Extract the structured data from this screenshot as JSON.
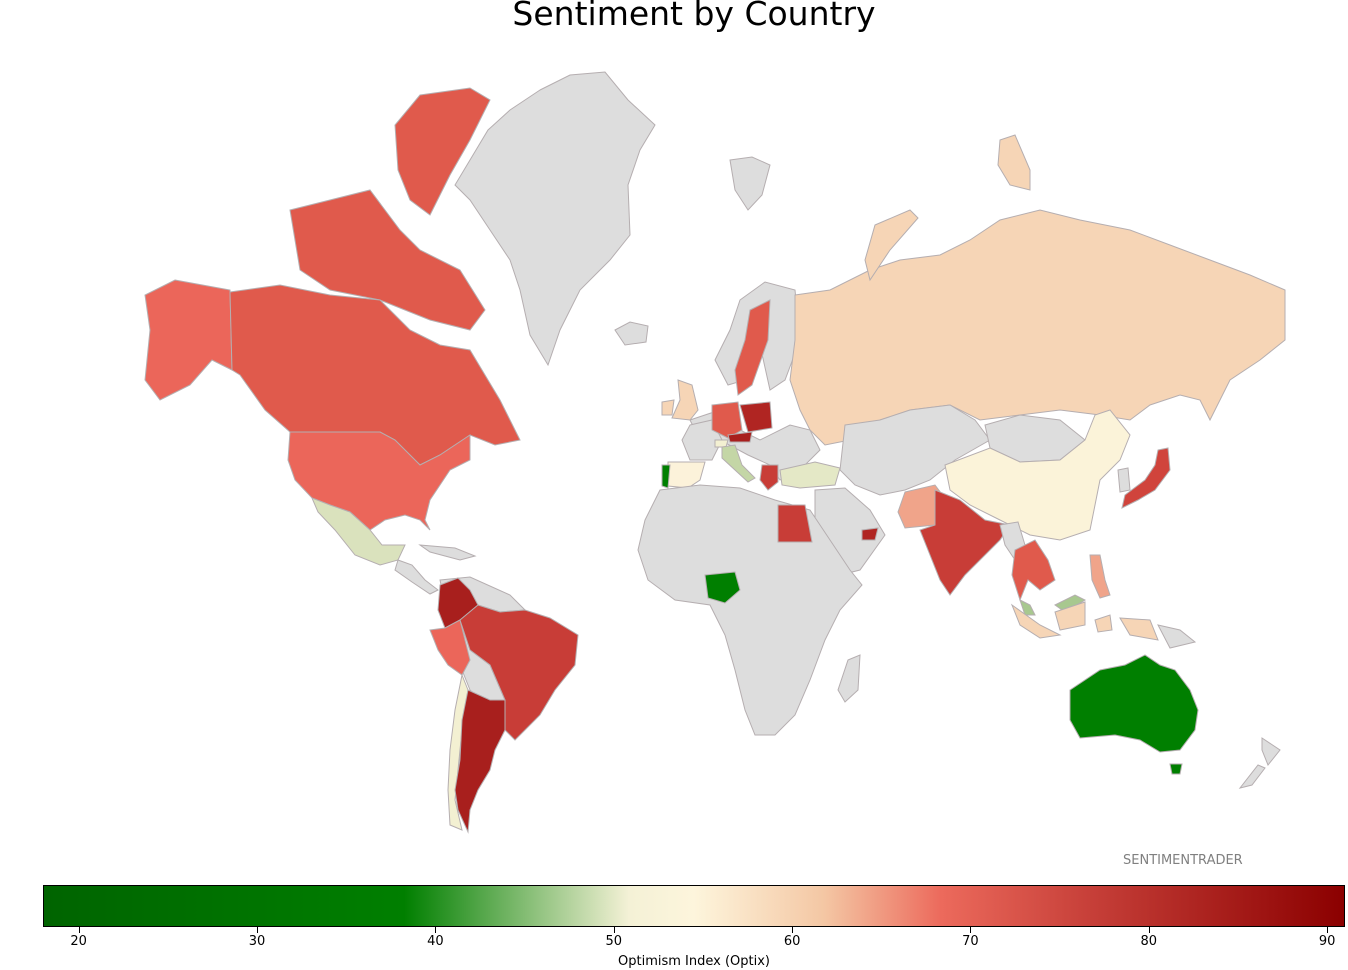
{
  "title": "Sentiment by Country",
  "watermark": "SENTIMENTRADER",
  "colors": {
    "no_data": "#dddddd",
    "border": "#b5aeb0"
  },
  "colorbar": {
    "label": "Optimism Index (Optix)",
    "min": 18,
    "max": 91,
    "ticks": [
      "20",
      "30",
      "40",
      "50",
      "60",
      "70",
      "80",
      "90"
    ]
  },
  "map_data": {
    "metric": "Optimism Index (Optix)",
    "colored_regions": [
      {
        "region": "Canada",
        "fill": "#e05a4c"
      },
      {
        "region": "United States",
        "fill": "#eb665a"
      },
      {
        "region": "Alaska",
        "fill": "#eb665a"
      },
      {
        "region": "Greenland",
        "fill": "#dddddd"
      },
      {
        "region": "Mexico",
        "fill": "#dae2bd"
      },
      {
        "region": "Colombia",
        "fill": "#a81f1d"
      },
      {
        "region": "Peru",
        "fill": "#eb665a"
      },
      {
        "region": "Brazil",
        "fill": "#c83d37"
      },
      {
        "region": "Chile",
        "fill": "#f3f0d2"
      },
      {
        "region": "Argentina",
        "fill": "#a81f1d"
      },
      {
        "region": "United Kingdom",
        "fill": "#f6d5b6"
      },
      {
        "region": "Portugal",
        "fill": "#007f00"
      },
      {
        "region": "Spain",
        "fill": "#fcf2da"
      },
      {
        "region": "Germany",
        "fill": "#e05a4c"
      },
      {
        "region": "Poland",
        "fill": "#b02522"
      },
      {
        "region": "Austria",
        "fill": "#a81f1d"
      },
      {
        "region": "Switzerland",
        "fill": "#f3f0d2"
      },
      {
        "region": "Italy",
        "fill": "#c4d6a6"
      },
      {
        "region": "Greece",
        "fill": "#c83d37"
      },
      {
        "region": "Sweden",
        "fill": "#e05a4c"
      },
      {
        "region": "Turkey",
        "fill": "#e4e8c6"
      },
      {
        "region": "Russia",
        "fill": "#f6d5b6"
      },
      {
        "region": "Egypt",
        "fill": "#c83d37"
      },
      {
        "region": "Nigeria",
        "fill": "#007f00"
      },
      {
        "region": "Saudi Arabia / UAE",
        "fill": "#b02522"
      },
      {
        "region": "Pakistan",
        "fill": "#f0a48a"
      },
      {
        "region": "India",
        "fill": "#c83d37"
      },
      {
        "region": "China",
        "fill": "#fbf3d9"
      },
      {
        "region": "Japan",
        "fill": "#d0443c"
      },
      {
        "region": "Thailand / Vietnam",
        "fill": "#e05a4c"
      },
      {
        "region": "Philippines",
        "fill": "#f0a48a"
      },
      {
        "region": "Malaysia",
        "fill": "#a8c88f"
      },
      {
        "region": "Indonesia",
        "fill": "#f6d5b6"
      },
      {
        "region": "Australia",
        "fill": "#007f00"
      }
    ]
  }
}
